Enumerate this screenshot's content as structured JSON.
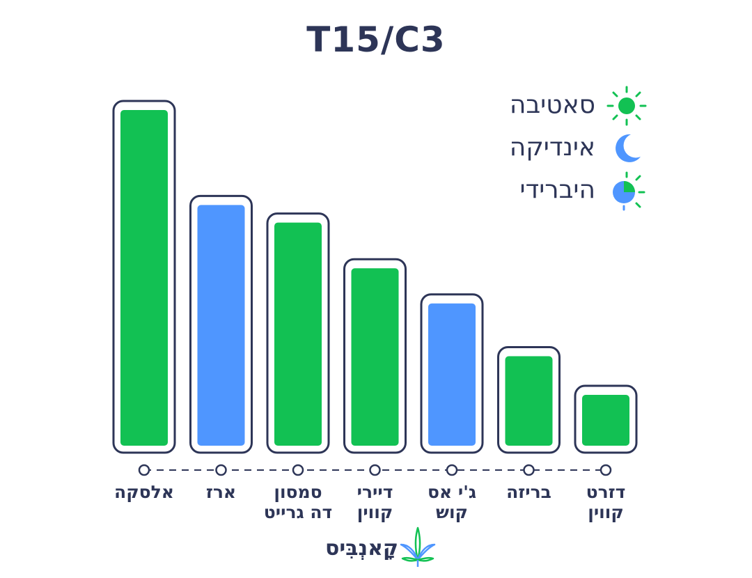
{
  "chart_data": {
    "type": "bar",
    "title": "T15/C3",
    "categories": [
      "אלסקה",
      "ארז",
      "סמסון\nדה גרייט",
      "דיירי\nקווין",
      "ג'י אס\nקוש",
      "בריזה",
      "דזרט\nקווין"
    ],
    "values": [
      100,
      73,
      68,
      55,
      45,
      30,
      19
    ],
    "types": [
      "sativa",
      "indica",
      "sativa",
      "sativa",
      "indica",
      "sativa",
      "sativa"
    ],
    "legend": [
      {
        "key": "sativa",
        "label": "סאטיבה",
        "icon": "sun-icon",
        "color": "#12c153"
      },
      {
        "key": "indica",
        "label": "אינדיקה",
        "icon": "moon-icon",
        "color": "#4f96ff"
      },
      {
        "key": "hybrid",
        "label": "היברידי",
        "icon": "hybrid-sun-moon-icon"
      }
    ],
    "legend_position": "top-right",
    "ylim": [
      0,
      100
    ],
    "grid": false,
    "xlabel": "",
    "ylabel": ""
  },
  "colors": {
    "sativa": "#12c153",
    "indica": "#4f96ff",
    "outline": "#2d3557"
  },
  "brand": {
    "name": "קָאנְבִּיס",
    "logo_icon": "cannabis-leaf-icon"
  }
}
